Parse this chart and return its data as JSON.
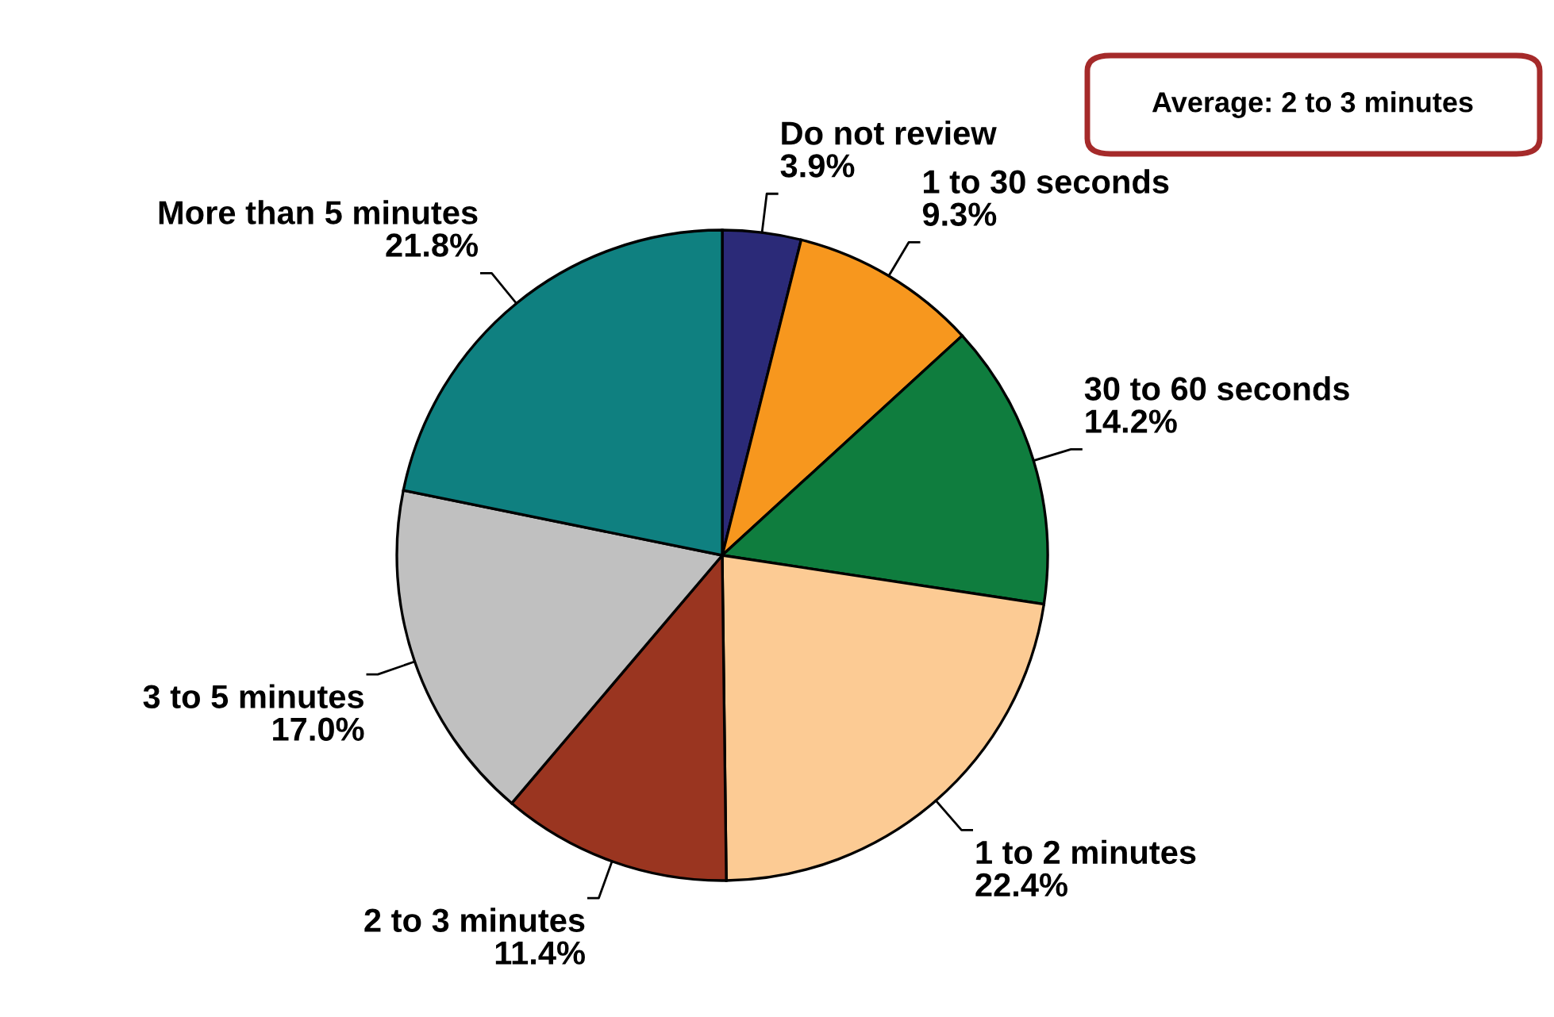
{
  "chart_data": {
    "type": "pie",
    "categories": [
      "Do not review",
      "1 to 30 seconds",
      "30 to 60 seconds",
      "1 to 2 minutes",
      "2 to 3 minutes",
      "3 to 5 minutes",
      "More than 5 minutes"
    ],
    "values": [
      3.9,
      9.3,
      14.2,
      22.4,
      11.4,
      17.0,
      21.8
    ],
    "value_labels": [
      "3.9%",
      "9.3%",
      "14.2%",
      "22.4%",
      "11.4%",
      "17.0%",
      "21.8%"
    ],
    "colors": [
      "#2b2a78",
      "#f7971e",
      "#0f7d3e",
      "#fccb94",
      "#9a3520",
      "#c0c0c0",
      "#0f8080"
    ],
    "annotations": [
      "Average: 2 to 3 minutes"
    ],
    "legend": false
  }
}
